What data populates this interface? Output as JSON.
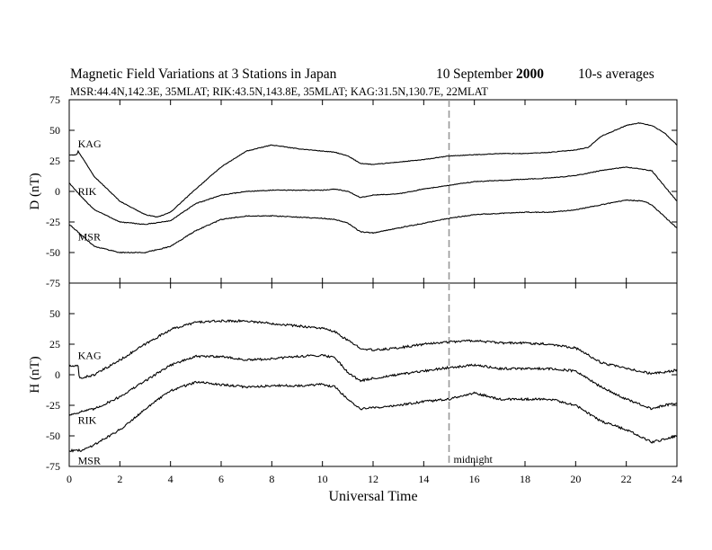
{
  "header": {
    "title": "Magnetic Field Variations at 3 Stations in Japan",
    "date_day": "10",
    "date_month": "September",
    "date_year": "2000",
    "averaging": "10-s averages",
    "stations_line": "MSR:44.4N,142.3E, 35MLAT;   RIK:43.5N,143.8E, 35MLAT;   KAG:31.5N,130.7E, 22MLAT"
  },
  "chart_data": {
    "type": "line",
    "xlabel": "Universal Time",
    "xlim": [
      0,
      24
    ],
    "xticks": [
      0,
      2,
      4,
      6,
      8,
      10,
      12,
      14,
      16,
      18,
      20,
      22,
      24
    ],
    "vline": {
      "x": 15,
      "label": "midnight",
      "color": "#999999"
    },
    "line_color": "#000000",
    "panels": [
      {
        "id": "D",
        "ylabel": "D (nT)",
        "ylim": [
          -75,
          75
        ],
        "yticks": [
          75,
          50,
          25,
          0,
          -25,
          -50,
          -75
        ],
        "series": [
          {
            "name": "KAG",
            "noise": 0.25,
            "points": [
              [
                0,
                30
              ],
              [
                0.3,
                30
              ],
              [
                0.35,
                33
              ],
              [
                1,
                12
              ],
              [
                2,
                -8
              ],
              [
                3,
                -19
              ],
              [
                3.5,
                -21
              ],
              [
                4,
                -17
              ],
              [
                5,
                2
              ],
              [
                6,
                20
              ],
              [
                7,
                33
              ],
              [
                8,
                38
              ],
              [
                9,
                35
              ],
              [
                10,
                33
              ],
              [
                10.5,
                32
              ],
              [
                11,
                29
              ],
              [
                11.5,
                23
              ],
              [
                12,
                22
              ],
              [
                13,
                24
              ],
              [
                14,
                26
              ],
              [
                15,
                29
              ],
              [
                16,
                30
              ],
              [
                17,
                31
              ],
              [
                18,
                31
              ],
              [
                19,
                32
              ],
              [
                20,
                34
              ],
              [
                20.5,
                36
              ],
              [
                21,
                45
              ],
              [
                22,
                54
              ],
              [
                22.5,
                56
              ],
              [
                23,
                54
              ],
              [
                23.5,
                48
              ],
              [
                24,
                38
              ]
            ],
            "label_at": [
              0.2,
              36
            ]
          },
          {
            "name": "RIK",
            "noise": 0.3,
            "points": [
              [
                0,
                7
              ],
              [
                0.5,
                -5
              ],
              [
                1,
                -15
              ],
              [
                2,
                -25
              ],
              [
                3,
                -27
              ],
              [
                4,
                -24
              ],
              [
                5,
                -10
              ],
              [
                6,
                -3
              ],
              [
                7,
                0
              ],
              [
                8,
                1
              ],
              [
                9,
                1
              ],
              [
                10,
                1
              ],
              [
                10.5,
                2
              ],
              [
                11,
                0
              ],
              [
                11.5,
                -5
              ],
              [
                12,
                -3
              ],
              [
                13,
                -2
              ],
              [
                14,
                2
              ],
              [
                15,
                5
              ],
              [
                16,
                8
              ],
              [
                17,
                9
              ],
              [
                18,
                10
              ],
              [
                19,
                11
              ],
              [
                20,
                13
              ],
              [
                21,
                17
              ],
              [
                22,
                20
              ],
              [
                23,
                17
              ],
              [
                24,
                -8
              ]
            ],
            "label_at": [
              0.2,
              -3
            ]
          },
          {
            "name": "MSR",
            "noise": 0.35,
            "points": [
              [
                0,
                -27
              ],
              [
                0.5,
                -36
              ],
              [
                1,
                -45
              ],
              [
                2,
                -50
              ],
              [
                3,
                -50
              ],
              [
                4,
                -45
              ],
              [
                5,
                -32
              ],
              [
                6,
                -23
              ],
              [
                7,
                -20
              ],
              [
                8,
                -20
              ],
              [
                9,
                -21
              ],
              [
                10,
                -22
              ],
              [
                10.5,
                -23
              ],
              [
                11,
                -26
              ],
              [
                11.5,
                -33
              ],
              [
                12,
                -34
              ],
              [
                13,
                -30
              ],
              [
                14,
                -26
              ],
              [
                15,
                -22
              ],
              [
                16,
                -19
              ],
              [
                17,
                -18
              ],
              [
                18,
                -17
              ],
              [
                19,
                -17
              ],
              [
                20,
                -15
              ],
              [
                21,
                -11
              ],
              [
                22,
                -7
              ],
              [
                22.7,
                -8
              ],
              [
                23,
                -11
              ],
              [
                24,
                -30
              ]
            ],
            "label_at": [
              0.2,
              -40
            ]
          }
        ]
      },
      {
        "id": "H",
        "ylabel": "H (nT)",
        "ylim": [
          -75,
          75
        ],
        "yticks": [
          50,
          25,
          0,
          -25,
          -50,
          -75
        ],
        "series": [
          {
            "name": "KAG",
            "noise": 0.9,
            "points": [
              [
                0,
                7
              ],
              [
                0.35,
                7
              ],
              [
                0.4,
                -3
              ],
              [
                1,
                0
              ],
              [
                2,
                12
              ],
              [
                3,
                25
              ],
              [
                4,
                37
              ],
              [
                5,
                43
              ],
              [
                6,
                44
              ],
              [
                7,
                44
              ],
              [
                8,
                42
              ],
              [
                9,
                40
              ],
              [
                10,
                38
              ],
              [
                10.5,
                35
              ],
              [
                11,
                28
              ],
              [
                11.5,
                22
              ],
              [
                12,
                20
              ],
              [
                13,
                22
              ],
              [
                14,
                25
              ],
              [
                15,
                27
              ],
              [
                16,
                28
              ],
              [
                17,
                26
              ],
              [
                18,
                26
              ],
              [
                19,
                25
              ],
              [
                20,
                22
              ],
              [
                21,
                10
              ],
              [
                22,
                5
              ],
              [
                22.5,
                3
              ],
              [
                23,
                1
              ],
              [
                23.5,
                2
              ],
              [
                24,
                4
              ]
            ],
            "label_at": [
              0.2,
              13
            ]
          },
          {
            "name": "RIK",
            "noise": 0.9,
            "points": [
              [
                0,
                -33
              ],
              [
                0.5,
                -30
              ],
              [
                1,
                -28
              ],
              [
                2,
                -18
              ],
              [
                3,
                -5
              ],
              [
                4,
                8
              ],
              [
                5,
                15
              ],
              [
                6,
                15
              ],
              [
                7,
                12
              ],
              [
                8,
                13
              ],
              [
                9,
                15
              ],
              [
                10,
                16
              ],
              [
                10.5,
                14
              ],
              [
                11,
                2
              ],
              [
                11.5,
                -5
              ],
              [
                12,
                -3
              ],
              [
                13,
                0
              ],
              [
                14,
                3
              ],
              [
                15,
                6
              ],
              [
                16,
                8
              ],
              [
                17,
                5
              ],
              [
                18,
                5
              ],
              [
                19,
                5
              ],
              [
                20,
                3
              ],
              [
                21,
                -10
              ],
              [
                22,
                -20
              ],
              [
                23,
                -28
              ],
              [
                23.5,
                -25
              ],
              [
                24,
                -23
              ]
            ],
            "label_at": [
              0.2,
              -40
            ]
          },
          {
            "name": "MSR",
            "noise": 0.9,
            "points": [
              [
                0,
                -62
              ],
              [
                0.5,
                -62
              ],
              [
                1,
                -57
              ],
              [
                2,
                -45
              ],
              [
                3,
                -28
              ],
              [
                4,
                -13
              ],
              [
                5,
                -6
              ],
              [
                6,
                -8
              ],
              [
                7,
                -10
              ],
              [
                8,
                -9
              ],
              [
                9,
                -9
              ],
              [
                10,
                -8
              ],
              [
                10.5,
                -10
              ],
              [
                11,
                -20
              ],
              [
                11.5,
                -28
              ],
              [
                12,
                -27
              ],
              [
                13,
                -25
              ],
              [
                14,
                -22
              ],
              [
                15,
                -20
              ],
              [
                16,
                -15
              ],
              [
                17,
                -20
              ],
              [
                18,
                -20
              ],
              [
                19,
                -20
              ],
              [
                20,
                -25
              ],
              [
                21,
                -38
              ],
              [
                22,
                -45
              ],
              [
                23,
                -55
              ],
              [
                23.5,
                -53
              ],
              [
                24,
                -50
              ]
            ],
            "label_at": [
              0.2,
              -73
            ]
          }
        ]
      }
    ]
  }
}
